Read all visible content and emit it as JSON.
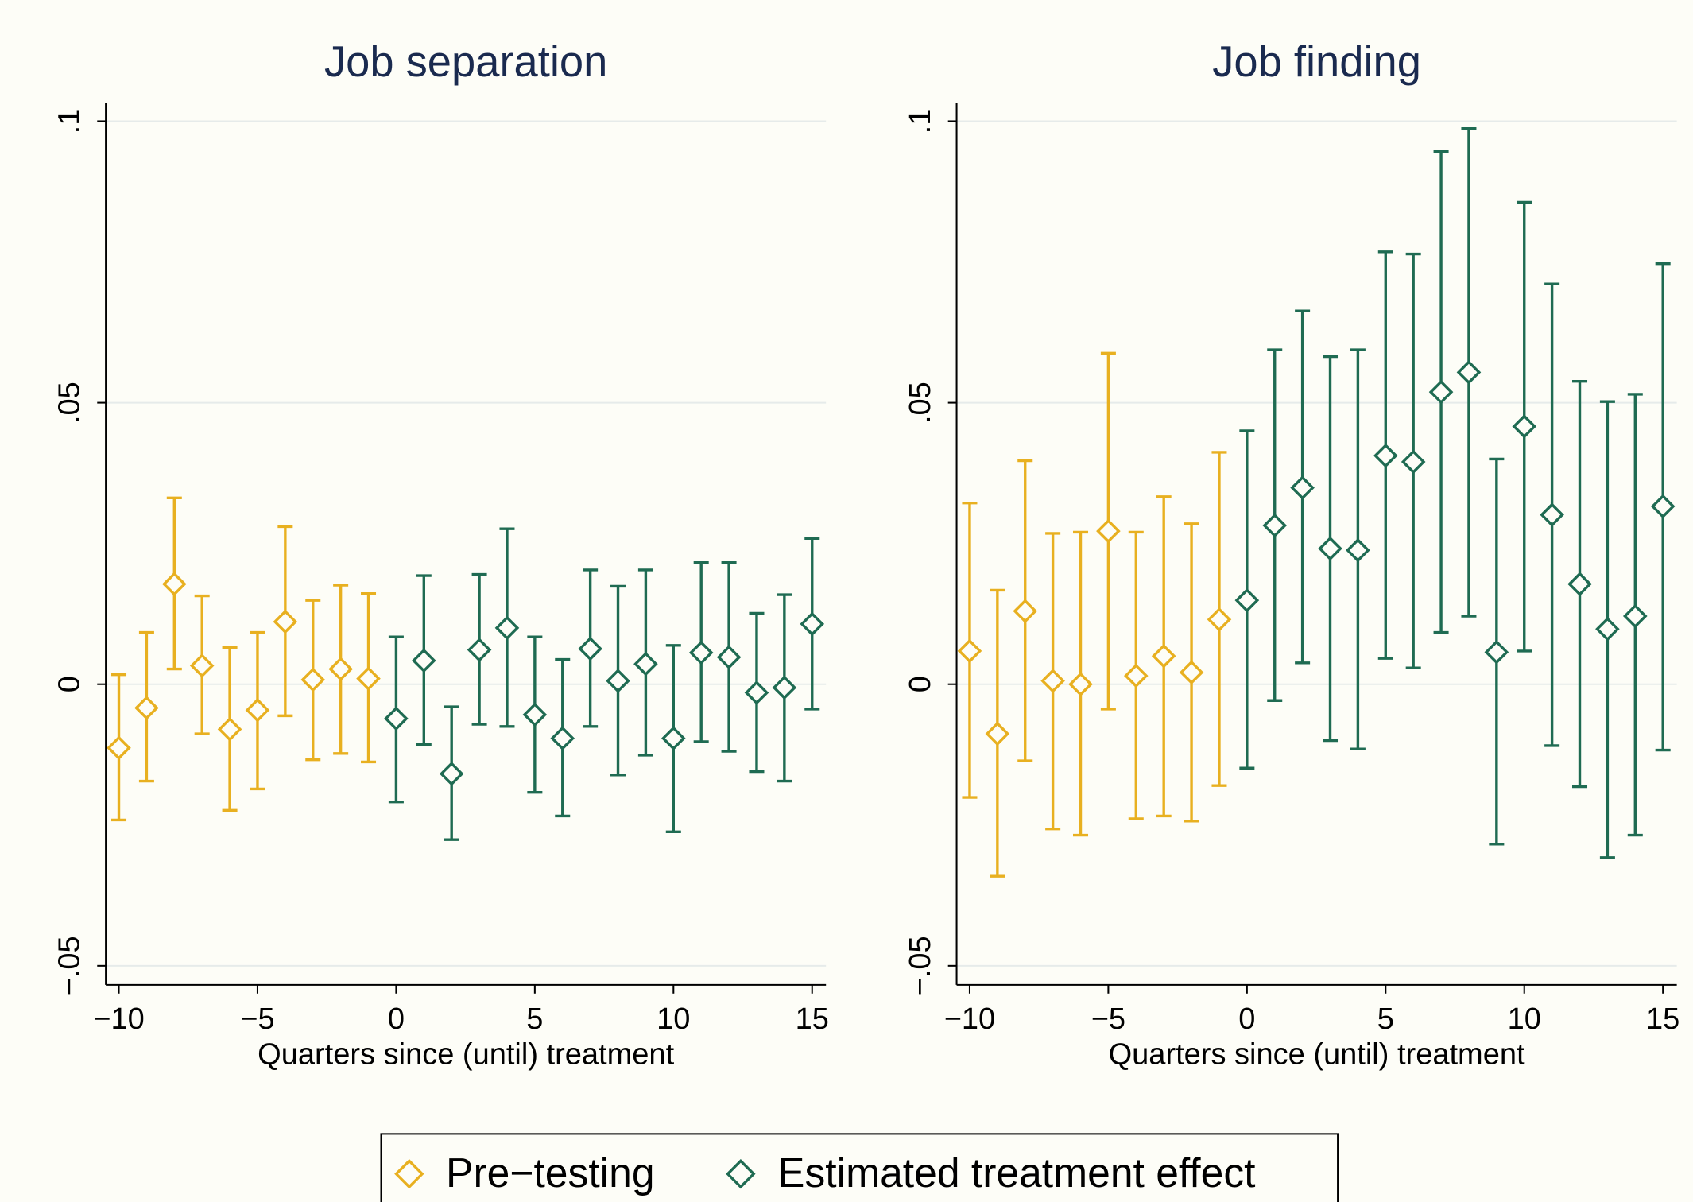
{
  "chart_data": [
    {
      "type": "errorbar",
      "title": "Job separation",
      "x_label": "Quarters since (until) treatment",
      "xlim": [
        -10.47,
        15.5
      ],
      "ylim": [
        -0.0534,
        0.1033
      ],
      "xticks": [
        {
          "value": -10,
          "label": "−10"
        },
        {
          "value": -5,
          "label": "−5"
        },
        0,
        5,
        10,
        15
      ],
      "yticks": [
        {
          "value": -0.05,
          "label": "−.05"
        },
        0,
        {
          "value": 0.05,
          "label": ".05"
        },
        {
          "value": 0.1,
          "label": ".1"
        }
      ],
      "grid": true,
      "series": [
        {
          "name": "Pre−testing",
          "color": "#e8b020",
          "x": [
            -10,
            -9,
            -8,
            -7,
            -6,
            -5,
            -4,
            -3,
            -2,
            -1
          ],
          "values": [
            -0.0113,
            -0.0042,
            0.0178,
            0.0033,
            -0.008,
            -0.0046,
            0.0111,
            0.0008,
            0.0027,
            0.001
          ],
          "lower": [
            -0.0241,
            -0.0172,
            0.0027,
            -0.0088,
            -0.0224,
            -0.0186,
            -0.0056,
            -0.0134,
            -0.0123,
            -0.0138
          ],
          "upper": [
            0.0017,
            0.0092,
            0.0331,
            0.0157,
            0.0065,
            0.0092,
            0.028,
            0.0149,
            0.0176,
            0.0161
          ]
        },
        {
          "name": "Estimated treatment effect",
          "color": "#1f6b52",
          "x": [
            0,
            1,
            2,
            3,
            4,
            5,
            6,
            7,
            8,
            9,
            10,
            11,
            12,
            13,
            14,
            15
          ],
          "values": [
            -0.0061,
            0.0042,
            -0.0159,
            0.0061,
            0.01,
            -0.0054,
            -0.0096,
            0.0063,
            0.0006,
            0.0036,
            -0.0096,
            0.0056,
            0.0048,
            -0.0015,
            -0.0006,
            0.0107
          ],
          "lower": [
            -0.0209,
            -0.0107,
            -0.0276,
            -0.0071,
            -0.0075,
            -0.0192,
            -0.0234,
            -0.0075,
            -0.0161,
            -0.0126,
            -0.0262,
            -0.0102,
            -0.0119,
            -0.0155,
            -0.0172,
            -0.0044
          ],
          "upper": [
            0.0084,
            0.0193,
            -0.004,
            0.0195,
            0.0276,
            0.0084,
            0.0044,
            0.0203,
            0.0174,
            0.0203,
            0.0069,
            0.0216,
            0.0216,
            0.0126,
            0.0159,
            0.0259
          ]
        }
      ]
    },
    {
      "type": "errorbar",
      "title": "Job finding",
      "x_label": "Quarters since (until) treatment",
      "xlim": [
        -10.47,
        15.5
      ],
      "ylim": [
        -0.0534,
        0.1033
      ],
      "xticks": [
        {
          "value": -10,
          "label": "−10"
        },
        {
          "value": -5,
          "label": "−5"
        },
        0,
        5,
        10,
        15
      ],
      "yticks": [
        {
          "value": -0.05,
          "label": "−.05"
        },
        0,
        {
          "value": 0.05,
          "label": ".05"
        },
        {
          "value": 0.1,
          "label": ".1"
        }
      ],
      "grid": true,
      "series": [
        {
          "color": "#e8b020",
          "x": [
            -10,
            -9,
            -8,
            -7,
            -6,
            -5,
            -4,
            -3,
            -2,
            -1
          ],
          "values": [
            0.0059,
            -0.0088,
            0.013,
            0.0006,
            0.0,
            0.0272,
            0.0015,
            0.005,
            0.0021,
            0.0115
          ],
          "lower": [
            -0.0201,
            -0.0341,
            -0.0136,
            -0.0257,
            -0.0268,
            -0.0044,
            -0.0239,
            -0.0234,
            -0.0243,
            -0.018
          ],
          "upper": [
            0.0322,
            0.0167,
            0.0397,
            0.0268,
            0.027,
            0.0588,
            0.027,
            0.0333,
            0.0285,
            0.0412
          ]
        },
        {
          "color": "#1f6b52",
          "x": [
            0,
            1,
            2,
            3,
            4,
            5,
            6,
            7,
            8,
            9,
            10,
            11,
            12,
            13,
            14,
            15
          ],
          "values": [
            0.0149,
            0.0282,
            0.0349,
            0.0241,
            0.0238,
            0.0406,
            0.0395,
            0.0519,
            0.0554,
            0.0057,
            0.0458,
            0.0301,
            0.0178,
            0.0098,
            0.0121,
            0.0316
          ],
          "lower": [
            -0.0149,
            -0.0029,
            0.0038,
            -0.01,
            -0.0115,
            0.0046,
            0.0029,
            0.0092,
            0.0121,
            -0.0284,
            0.0059,
            -0.0109,
            -0.0182,
            -0.0308,
            -0.0268,
            -0.0117
          ],
          "upper": [
            0.045,
            0.0594,
            0.0663,
            0.0582,
            0.0594,
            0.0768,
            0.0764,
            0.0946,
            0.0987,
            0.04,
            0.0856,
            0.0711,
            0.0538,
            0.0502,
            0.0515,
            0.0747
          ]
        }
      ]
    }
  ]
}
